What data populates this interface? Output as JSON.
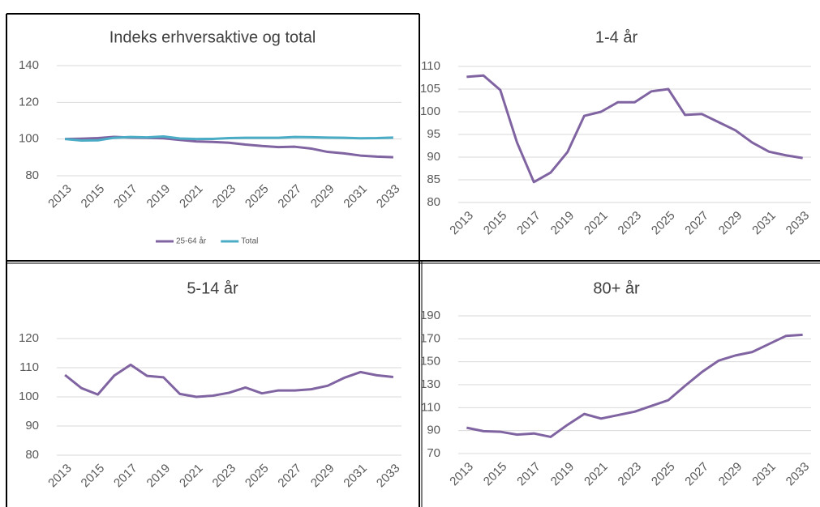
{
  "chart_data": [
    {
      "type": "line",
      "title": "Indeks erhversaktive og total",
      "x": [
        2013,
        2014,
        2015,
        2016,
        2017,
        2018,
        2019,
        2020,
        2021,
        2022,
        2023,
        2024,
        2025,
        2026,
        2027,
        2028,
        2029,
        2030,
        2031,
        2032,
        2033
      ],
      "xlim": [
        2012.5,
        2033.5
      ],
      "xticks": [
        2013,
        2015,
        2017,
        2019,
        2021,
        2023,
        2025,
        2027,
        2029,
        2031,
        2033
      ],
      "ylim": [
        80,
        140
      ],
      "yticks": [
        80,
        100,
        120,
        140
      ],
      "grid": true,
      "legend": "bottom",
      "series": [
        {
          "name": "25-64 år",
          "color": "#8064a2",
          "values": [
            100,
            100.2,
            100.5,
            101.2,
            100.8,
            100.6,
            100.4,
            99.5,
            98.7,
            98.4,
            98,
            97,
            96.2,
            95.6,
            95.8,
            94.8,
            93,
            92.2,
            91,
            90.4,
            90.1
          ]
        },
        {
          "name": "Total",
          "color": "#4bacc6",
          "values": [
            100,
            99.2,
            99.3,
            100.7,
            101.1,
            100.9,
            101.4,
            100.3,
            100,
            100.1,
            100.5,
            100.7,
            100.7,
            100.7,
            101.1,
            101,
            100.8,
            100.7,
            100.4,
            100.5,
            100.8
          ]
        }
      ]
    },
    {
      "type": "line",
      "title": "1-4 år",
      "x": [
        2013,
        2014,
        2015,
        2016,
        2017,
        2018,
        2019,
        2020,
        2021,
        2022,
        2023,
        2024,
        2025,
        2026,
        2027,
        2028,
        2029,
        2030,
        2031,
        2032,
        2033
      ],
      "xlim": [
        2012.5,
        2033.5
      ],
      "xticks": [
        2013,
        2015,
        2017,
        2019,
        2021,
        2023,
        2025,
        2027,
        2029,
        2031,
        2033
      ],
      "ylim": [
        80,
        110
      ],
      "yticks": [
        80,
        85,
        90,
        95,
        100,
        105,
        110
      ],
      "grid": true,
      "color": "#8064a2",
      "values": [
        107.7,
        108,
        104.8,
        93.2,
        84.5,
        86.6,
        91.1,
        99.1,
        100,
        102.1,
        102.1,
        104.5,
        105,
        99.3,
        99.5,
        97.7,
        95.9,
        93.2,
        91.2,
        90.4,
        89.8
      ]
    },
    {
      "type": "line",
      "title": "5-14 år",
      "x": [
        2013,
        2014,
        2015,
        2016,
        2017,
        2018,
        2019,
        2020,
        2021,
        2022,
        2023,
        2024,
        2025,
        2026,
        2027,
        2028,
        2029,
        2030,
        2031,
        2032,
        2033
      ],
      "xlim": [
        2012.5,
        2033.5
      ],
      "xticks": [
        2013,
        2015,
        2017,
        2019,
        2021,
        2023,
        2025,
        2027,
        2029,
        2031,
        2033
      ],
      "ylim": [
        80,
        120
      ],
      "yticks": [
        80,
        90,
        100,
        110,
        120
      ],
      "grid": true,
      "color": "#8064a2",
      "values": [
        107.5,
        103,
        100.8,
        107.3,
        111,
        107.2,
        106.7,
        101,
        100,
        100.4,
        101.4,
        103.2,
        101.2,
        102.2,
        102.2,
        102.6,
        103.8,
        106.5,
        108.5,
        107.4,
        106.8
      ]
    },
    {
      "type": "line",
      "title": "80+ år",
      "x": [
        2013,
        2014,
        2015,
        2016,
        2017,
        2018,
        2019,
        2020,
        2021,
        2022,
        2023,
        2024,
        2025,
        2026,
        2027,
        2028,
        2029,
        2030,
        2031,
        2032,
        2033
      ],
      "xlim": [
        2012.5,
        2033.5
      ],
      "xticks": [
        2013,
        2015,
        2017,
        2019,
        2021,
        2023,
        2025,
        2027,
        2029,
        2031,
        2033
      ],
      "ylim": [
        70,
        190
      ],
      "yticks": [
        70,
        90,
        110,
        130,
        150,
        170,
        190
      ],
      "grid": true,
      "color": "#8064a2",
      "values": [
        92.5,
        89.5,
        89,
        86.5,
        87.5,
        84.5,
        95,
        104.5,
        100.5,
        103.5,
        106.5,
        111.5,
        116.5,
        129,
        141,
        151,
        155.5,
        158.5,
        165.5,
        172.5,
        173.5
      ]
    }
  ]
}
